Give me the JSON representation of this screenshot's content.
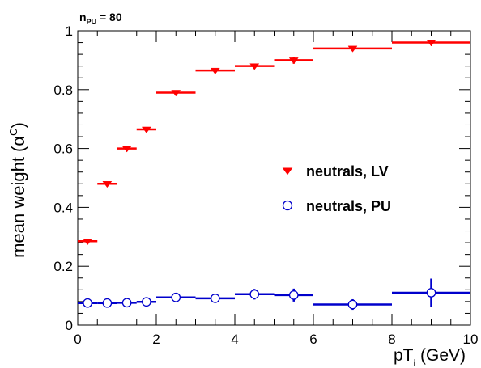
{
  "chart_data": {
    "type": "scatter",
    "title": "",
    "annotation": {
      "main": "n",
      "sub": "PU",
      "rest": " = 80"
    },
    "xlabel": {
      "main": "pT",
      "sub": "i",
      "rest": " (GeV)"
    },
    "ylabel": {
      "main": "mean weight (α",
      "sup": "C",
      "rest": ")"
    },
    "xlim": [
      0,
      10
    ],
    "ylim": [
      0,
      1
    ],
    "xticks": [
      0,
      2,
      4,
      6,
      8,
      10
    ],
    "yticks": [
      0,
      0.2,
      0.4,
      0.6,
      0.8,
      1
    ],
    "ytick_labels": [
      "0",
      "0.2",
      "0.4",
      "0.6",
      "0.8",
      "1"
    ],
    "grid": false,
    "legend_placement": "right-middle",
    "series": [
      {
        "name": "neutrals, LV",
        "marker": "triangle-down",
        "color": "#ff0000",
        "points": [
          {
            "x": 0.25,
            "xlo": 0.0,
            "xhi": 0.5,
            "y": 0.285,
            "yerr": 0.005
          },
          {
            "x": 0.75,
            "xlo": 0.5,
            "xhi": 1.0,
            "y": 0.48,
            "yerr": 0.005
          },
          {
            "x": 1.25,
            "xlo": 1.0,
            "xhi": 1.5,
            "y": 0.6,
            "yerr": 0.005
          },
          {
            "x": 1.75,
            "xlo": 1.5,
            "xhi": 2.0,
            "y": 0.665,
            "yerr": 0.008
          },
          {
            "x": 2.5,
            "xlo": 2.0,
            "xhi": 3.0,
            "y": 0.79,
            "yerr": 0.005
          },
          {
            "x": 3.5,
            "xlo": 3.0,
            "xhi": 4.0,
            "y": 0.865,
            "yerr": 0.005
          },
          {
            "x": 4.5,
            "xlo": 4.0,
            "xhi": 5.0,
            "y": 0.88,
            "yerr": 0.008
          },
          {
            "x": 5.5,
            "xlo": 5.0,
            "xhi": 6.0,
            "y": 0.9,
            "yerr": 0.012
          },
          {
            "x": 7.0,
            "xlo": 6.0,
            "xhi": 8.0,
            "y": 0.94,
            "yerr": 0.005
          },
          {
            "x": 9.0,
            "xlo": 8.0,
            "xhi": 10.0,
            "y": 0.96,
            "yerr": 0.005
          }
        ]
      },
      {
        "name": "neutrals, PU",
        "marker": "open-circle",
        "color": "#0000cc",
        "points": [
          {
            "x": 0.25,
            "xlo": 0.0,
            "xhi": 0.5,
            "y": 0.075,
            "yerr": 0.003
          },
          {
            "x": 0.75,
            "xlo": 0.5,
            "xhi": 1.0,
            "y": 0.075,
            "yerr": 0.003
          },
          {
            "x": 1.25,
            "xlo": 1.0,
            "xhi": 1.5,
            "y": 0.076,
            "yerr": 0.004
          },
          {
            "x": 1.75,
            "xlo": 1.5,
            "xhi": 2.0,
            "y": 0.079,
            "yerr": 0.006
          },
          {
            "x": 2.5,
            "xlo": 2.0,
            "xhi": 3.0,
            "y": 0.094,
            "yerr": 0.004
          },
          {
            "x": 3.5,
            "xlo": 3.0,
            "xhi": 4.0,
            "y": 0.091,
            "yerr": 0.005
          },
          {
            "x": 4.5,
            "xlo": 4.0,
            "xhi": 5.0,
            "y": 0.105,
            "yerr": 0.018
          },
          {
            "x": 5.5,
            "xlo": 5.0,
            "xhi": 6.0,
            "y": 0.102,
            "yerr": 0.022
          },
          {
            "x": 7.0,
            "xlo": 6.0,
            "xhi": 8.0,
            "y": 0.07,
            "yerr": 0.018
          },
          {
            "x": 9.0,
            "xlo": 8.0,
            "xhi": 10.0,
            "y": 0.11,
            "yerr": 0.048
          }
        ]
      }
    ]
  }
}
